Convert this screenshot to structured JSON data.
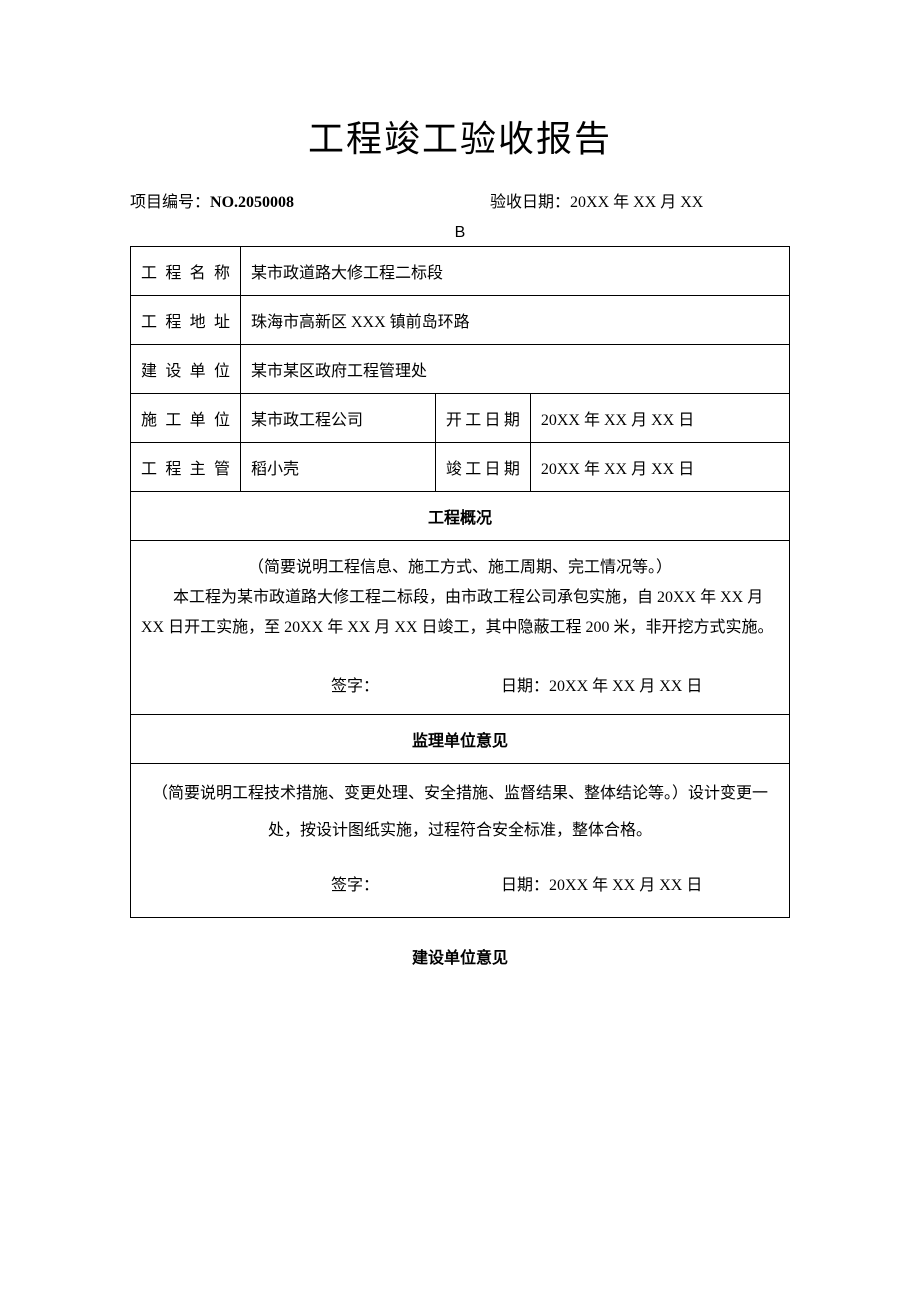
{
  "title": "工程竣工验收报告",
  "header": {
    "project_no_label": "项目编号：",
    "project_no_value": "NO.2050008",
    "accept_date_label": "验收日期：",
    "accept_date_value": "20XX 年 XX 月 XX",
    "b_mark": "B"
  },
  "info": {
    "project_name_label": "工程名称",
    "project_name_value": "某市政道路大修工程二标段",
    "project_addr_label": "工程地址",
    "project_addr_value": "珠海市高新区 XXX 镇前岛环路",
    "build_unit_label": "建设单位",
    "build_unit_value": "某市某区政府工程管理处",
    "constr_unit_label": "施工单位",
    "constr_unit_value": "某市政工程公司",
    "start_date_label": "开工日期",
    "start_date_value": "20XX 年 XX 月 XX 日",
    "manager_label": "工程主管",
    "manager_value": "稻小壳",
    "end_date_label": "竣工日期",
    "end_date_value": "20XX 年 XX 月 XX 日"
  },
  "overview": {
    "header": "工程概况",
    "hint": "（简要说明工程信息、施工方式、施工周期、完工情况等。）",
    "body": "本工程为某市政道路大修工程二标段，由市政工程公司承包实施，自 20XX 年 XX 月 XX 日开工实施，至 20XX 年 XX 月 XX 日竣工，其中隐蔽工程 200 米，非开挖方式实施。",
    "sign_label": "签字：",
    "date_label": "日期：",
    "date_value": "20XX 年 XX 月 XX 日"
  },
  "supervisor": {
    "header": "监理单位意见",
    "body": "（简要说明工程技术措施、变更处理、安全措施、监督结果、整体结论等。）设计变更一处，按设计图纸实施，过程符合安全标准，整体合格。",
    "sign_label": "签字：",
    "date_label": "日期：",
    "date_value": "20XX 年 XX 月 XX 日"
  },
  "builder": {
    "header": "建设单位意见"
  },
  "colors": {
    "text": "#000000",
    "border": "#000000",
    "background": "#ffffff"
  }
}
